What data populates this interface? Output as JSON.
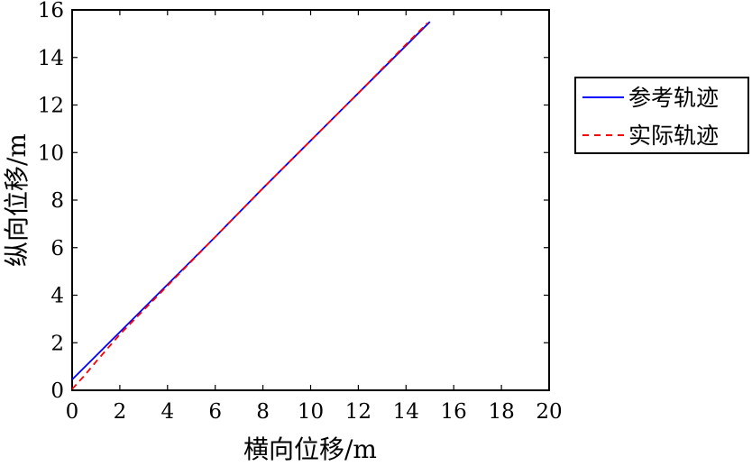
{
  "chart_data": {
    "type": "line",
    "xlabel": "横向位移/m",
    "ylabel": "纵向位移/m",
    "xlim": [
      0,
      20
    ],
    "ylim": [
      0,
      16
    ],
    "xticks": [
      "0",
      "2",
      "4",
      "6",
      "8",
      "10",
      "12",
      "14",
      "16",
      "18",
      "20"
    ],
    "yticks": [
      "0",
      "2",
      "4",
      "6",
      "8",
      "10",
      "12",
      "14",
      "16"
    ],
    "grid": false,
    "legend_position": "outside-right",
    "series": [
      {
        "name": "参考轨迹",
        "color": "#0000ff",
        "style": "solid",
        "x": [
          0,
          1,
          2,
          4,
          6,
          8,
          10,
          12,
          14,
          15
        ],
        "y": [
          0.45,
          1.45,
          2.45,
          4.45,
          6.45,
          8.5,
          10.5,
          12.5,
          14.5,
          15.5
        ]
      },
      {
        "name": "实际轨迹",
        "color": "#ff0000",
        "style": "dashed",
        "x": [
          0,
          0.5,
          1,
          2,
          4,
          6,
          8,
          10,
          12,
          14,
          14.9
        ],
        "y": [
          0.05,
          0.6,
          1.2,
          2.35,
          4.4,
          6.45,
          8.5,
          10.5,
          12.5,
          14.55,
          15.45
        ]
      }
    ]
  }
}
